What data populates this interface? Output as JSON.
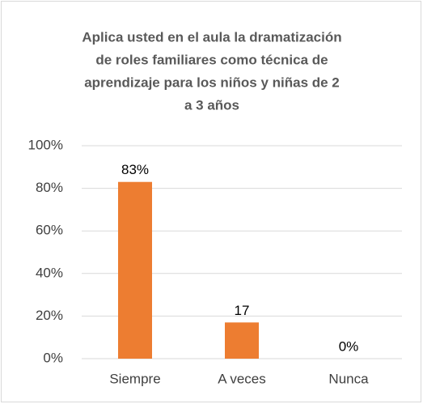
{
  "chart_data": {
    "type": "bar",
    "title": [
      "Aplica usted en el aula la dramatización",
      "de roles familiares como técnica de",
      "aprendizaje para los niños y niñas  de 2",
      "a 3 años"
    ],
    "categories": [
      "Siempre",
      "A veces",
      "Nunca"
    ],
    "values": [
      83,
      17,
      0
    ],
    "value_labels": [
      "83%",
      "17",
      "0%"
    ],
    "color": "#ed7d31",
    "ylim": [
      0,
      100
    ],
    "yticks": [
      {
        "value": 0,
        "label": "0%"
      },
      {
        "value": 20,
        "label": "20%"
      },
      {
        "value": 40,
        "label": "40%"
      },
      {
        "value": 60,
        "label": "60%"
      },
      {
        "value": 80,
        "label": "80%"
      },
      {
        "value": 100,
        "label": "100%"
      }
    ],
    "grid": true
  }
}
